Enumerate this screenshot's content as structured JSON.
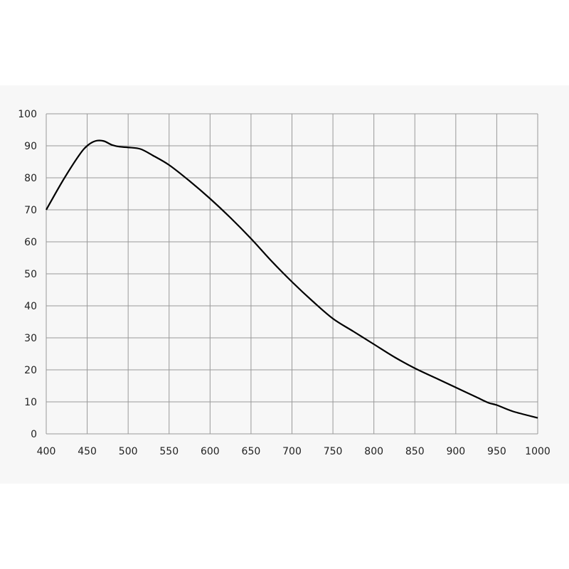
{
  "chart_data": {
    "type": "line",
    "title": "",
    "xlabel": "",
    "ylabel": "",
    "xlim": [
      400,
      1000
    ],
    "ylim": [
      0,
      100
    ],
    "grid": true,
    "x_ticks": [
      "400",
      "450",
      "500",
      "550",
      "600",
      "650",
      "700",
      "750",
      "800",
      "850",
      "900",
      "950",
      "1000"
    ],
    "y_ticks": [
      "0",
      "10",
      "20",
      "30",
      "40",
      "50",
      "60",
      "70",
      "80",
      "90",
      "100"
    ],
    "line_color": "#000000",
    "grid_color": "#999999",
    "background_color": "#f7f7f7",
    "series": [
      {
        "x": [
          400,
          420,
          440,
          450,
          460,
          470,
          480,
          490,
          500,
          515,
          530,
          550,
          575,
          600,
          625,
          650,
          675,
          700,
          725,
          750,
          775,
          800,
          825,
          850,
          875,
          900,
          925,
          940,
          950,
          970,
          1000
        ],
        "y": [
          70,
          79,
          87,
          90,
          91.5,
          91.5,
          90.3,
          89.7,
          89.5,
          89,
          87,
          84,
          79,
          73.5,
          67.5,
          61,
          54,
          47.5,
          41.5,
          36,
          32,
          28,
          24,
          20.5,
          17.5,
          14.5,
          11.5,
          9.7,
          9,
          7,
          5
        ]
      }
    ]
  }
}
